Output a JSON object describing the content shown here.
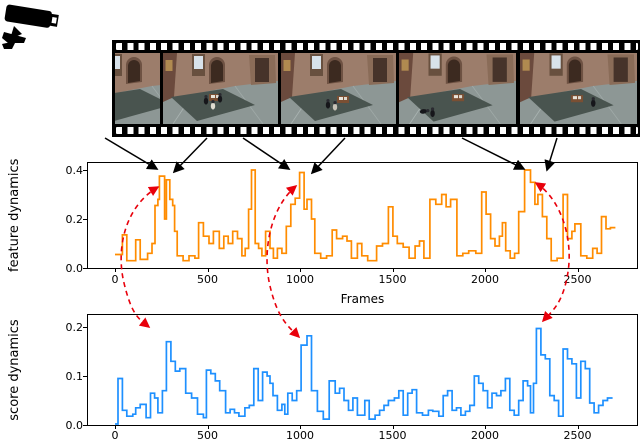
{
  "figure": {
    "camera_icon_name": "cctv-camera-icon",
    "film_strip": {
      "frame_count": 5
    },
    "annotations": {
      "frame_to_peak_arrow_count": 6,
      "frame_to_peak_arrow_color": "#000000",
      "peak_correspondence_arrow_count": 3,
      "peak_correspondence_arrow_color": "#e8000b",
      "peak_correspondence_arrow_style": "dashed"
    }
  },
  "chart_data": [
    {
      "type": "line",
      "line_style": "step",
      "title": "",
      "ylabel": "feature dynamics",
      "xlabel": "Frames",
      "color": "#FF8C00",
      "xticks": [
        0,
        500,
        1000,
        1500,
        2000,
        2500
      ],
      "yticks": [
        0.0,
        0.2,
        0.4
      ],
      "xlim": [
        -150,
        2820
      ],
      "ylim": [
        0.0,
        0.43
      ],
      "grid": false,
      "legend": "none",
      "x_end": 2705,
      "steps": [
        [
          0,
          0.055
        ],
        [
          40,
          0.135
        ],
        [
          64,
          0.03
        ],
        [
          112,
          0.115
        ],
        [
          136,
          0.035
        ],
        [
          176,
          0.06
        ],
        [
          200,
          0.1
        ],
        [
          216,
          0.255
        ],
        [
          232,
          0.28
        ],
        [
          240,
          0.375
        ],
        [
          268,
          0.2
        ],
        [
          278,
          0.36
        ],
        [
          296,
          0.28
        ],
        [
          312,
          0.255
        ],
        [
          322,
          0.15
        ],
        [
          336,
          0.05
        ],
        [
          368,
          0.03
        ],
        [
          400,
          0.05
        ],
        [
          432,
          0.04
        ],
        [
          452,
          0.185
        ],
        [
          478,
          0.13
        ],
        [
          508,
          0.1
        ],
        [
          532,
          0.15
        ],
        [
          564,
          0.08
        ],
        [
          588,
          0.13
        ],
        [
          612,
          0.1
        ],
        [
          636,
          0.15
        ],
        [
          662,
          0.12
        ],
        [
          686,
          0.05
        ],
        [
          704,
          0.08
        ],
        [
          722,
          0.24
        ],
        [
          738,
          0.4
        ],
        [
          758,
          0.1
        ],
        [
          776,
          0.08
        ],
        [
          794,
          0.05
        ],
        [
          814,
          0.15
        ],
        [
          838,
          0.08
        ],
        [
          856,
          0.04
        ],
        [
          878,
          0.08
        ],
        [
          902,
          0.06
        ],
        [
          926,
          0.17
        ],
        [
          950,
          0.26
        ],
        [
          974,
          0.285
        ],
        [
          998,
          0.39
        ],
        [
          1022,
          0.24
        ],
        [
          1038,
          0.28
        ],
        [
          1062,
          0.2
        ],
        [
          1080,
          0.06
        ],
        [
          1112,
          0.04
        ],
        [
          1144,
          0.05
        ],
        [
          1174,
          0.155
        ],
        [
          1198,
          0.12
        ],
        [
          1230,
          0.13
        ],
        [
          1254,
          0.11
        ],
        [
          1278,
          0.04
        ],
        [
          1310,
          0.1
        ],
        [
          1334,
          0.05
        ],
        [
          1366,
          0.03
        ],
        [
          1414,
          0.09
        ],
        [
          1446,
          0.1
        ],
        [
          1478,
          0.25
        ],
        [
          1502,
          0.13
        ],
        [
          1526,
          0.1
        ],
        [
          1558,
          0.085
        ],
        [
          1590,
          0.04
        ],
        [
          1622,
          0.09
        ],
        [
          1646,
          0.11
        ],
        [
          1670,
          0.04
        ],
        [
          1702,
          0.28
        ],
        [
          1734,
          0.26
        ],
        [
          1766,
          0.3
        ],
        [
          1790,
          0.25
        ],
        [
          1814,
          0.28
        ],
        [
          1848,
          0.05
        ],
        [
          1880,
          0.06
        ],
        [
          1912,
          0.07
        ],
        [
          1950,
          0.06
        ],
        [
          1982,
          0.31
        ],
        [
          2006,
          0.22
        ],
        [
          2030,
          0.12
        ],
        [
          2054,
          0.09
        ],
        [
          2078,
          0.13
        ],
        [
          2094,
          0.185
        ],
        [
          2112,
          0.07
        ],
        [
          2136,
          0.04
        ],
        [
          2160,
          0.06
        ],
        [
          2182,
          0.23
        ],
        [
          2214,
          0.4
        ],
        [
          2246,
          0.35
        ],
        [
          2270,
          0.26
        ],
        [
          2286,
          0.3
        ],
        [
          2310,
          0.21
        ],
        [
          2334,
          0.12
        ],
        [
          2358,
          0.03
        ],
        [
          2390,
          0.04
        ],
        [
          2422,
          0.3
        ],
        [
          2446,
          0.12
        ],
        [
          2470,
          0.15
        ],
        [
          2486,
          0.18
        ],
        [
          2518,
          0.05
        ],
        [
          2550,
          0.04
        ],
        [
          2582,
          0.08
        ],
        [
          2606,
          0.06
        ],
        [
          2630,
          0.21
        ],
        [
          2654,
          0.16
        ],
        [
          2678,
          0.165
        ]
      ]
    },
    {
      "type": "line",
      "line_style": "step",
      "title": "",
      "ylabel": "score dynamics",
      "xlabel": "",
      "color": "#1E90FF",
      "xticks": [
        0,
        500,
        1000,
        1500,
        2000,
        2500
      ],
      "yticks": [
        0.0,
        0.1,
        0.2
      ],
      "xlim": [
        -150,
        2820
      ],
      "ylim": [
        0.0,
        0.215
      ],
      "grid": false,
      "legend": "none",
      "x_end": 2690,
      "steps": [
        [
          0,
          0.002
        ],
        [
          16,
          0.095
        ],
        [
          40,
          0.03
        ],
        [
          64,
          0.018
        ],
        [
          96,
          0.022
        ],
        [
          112,
          0.035
        ],
        [
          136,
          0.042
        ],
        [
          168,
          0.015
        ],
        [
          192,
          0.065
        ],
        [
          214,
          0.055
        ],
        [
          232,
          0.025
        ],
        [
          256,
          0.07
        ],
        [
          278,
          0.17
        ],
        [
          302,
          0.13
        ],
        [
          326,
          0.11
        ],
        [
          350,
          0.115
        ],
        [
          382,
          0.065
        ],
        [
          414,
          0.055
        ],
        [
          446,
          0.022
        ],
        [
          478,
          0.015
        ],
        [
          494,
          0.112
        ],
        [
          518,
          0.105
        ],
        [
          542,
          0.09
        ],
        [
          566,
          0.07
        ],
        [
          598,
          0.025
        ],
        [
          622,
          0.032
        ],
        [
          646,
          0.025
        ],
        [
          670,
          0.018
        ],
        [
          702,
          0.035
        ],
        [
          726,
          0.04
        ],
        [
          750,
          0.115
        ],
        [
          774,
          0.05
        ],
        [
          798,
          0.108
        ],
        [
          822,
          0.1
        ],
        [
          838,
          0.085
        ],
        [
          854,
          0.06
        ],
        [
          878,
          0.03
        ],
        [
          902,
          0.042
        ],
        [
          918,
          0.022
        ],
        [
          934,
          0.065
        ],
        [
          958,
          0.05
        ],
        [
          982,
          0.07
        ],
        [
          1006,
          0.163
        ],
        [
          1038,
          0.182
        ],
        [
          1062,
          0.07
        ],
        [
          1094,
          0.028
        ],
        [
          1126,
          0.012
        ],
        [
          1158,
          0.09
        ],
        [
          1190,
          0.065
        ],
        [
          1214,
          0.075
        ],
        [
          1238,
          0.05
        ],
        [
          1262,
          0.03
        ],
        [
          1286,
          0.055
        ],
        [
          1310,
          0.02
        ],
        [
          1350,
          0.05
        ],
        [
          1374,
          0.012
        ],
        [
          1406,
          0.02
        ],
        [
          1430,
          0.03
        ],
        [
          1454,
          0.04
        ],
        [
          1478,
          0.05
        ],
        [
          1510,
          0.055
        ],
        [
          1534,
          0.07
        ],
        [
          1558,
          0.02
        ],
        [
          1582,
          0.065
        ],
        [
          1606,
          0.072
        ],
        [
          1630,
          0.025
        ],
        [
          1662,
          0.02
        ],
        [
          1694,
          0.03
        ],
        [
          1718,
          0.028
        ],
        [
          1750,
          0.018
        ],
        [
          1774,
          0.06
        ],
        [
          1798,
          0.07
        ],
        [
          1822,
          0.03
        ],
        [
          1846,
          0.035
        ],
        [
          1870,
          0.02
        ],
        [
          1894,
          0.028
        ],
        [
          1918,
          0.04
        ],
        [
          1942,
          0.1
        ],
        [
          1966,
          0.085
        ],
        [
          1990,
          0.07
        ],
        [
          2014,
          0.035
        ],
        [
          2038,
          0.065
        ],
        [
          2062,
          0.06
        ],
        [
          2086,
          0.07
        ],
        [
          2110,
          0.095
        ],
        [
          2134,
          0.03
        ],
        [
          2158,
          0.02
        ],
        [
          2182,
          0.05
        ],
        [
          2206,
          0.09
        ],
        [
          2230,
          0.08
        ],
        [
          2246,
          0.025
        ],
        [
          2262,
          0.085
        ],
        [
          2278,
          0.197
        ],
        [
          2302,
          0.143
        ],
        [
          2326,
          0.135
        ],
        [
          2350,
          0.06
        ],
        [
          2374,
          0.05
        ],
        [
          2398,
          0.018
        ],
        [
          2422,
          0.155
        ],
        [
          2446,
          0.135
        ],
        [
          2470,
          0.125
        ],
        [
          2494,
          0.055
        ],
        [
          2518,
          0.13
        ],
        [
          2542,
          0.115
        ],
        [
          2566,
          0.045
        ],
        [
          2590,
          0.025
        ],
        [
          2614,
          0.04
        ],
        [
          2638,
          0.05
        ],
        [
          2662,
          0.055
        ]
      ]
    }
  ]
}
